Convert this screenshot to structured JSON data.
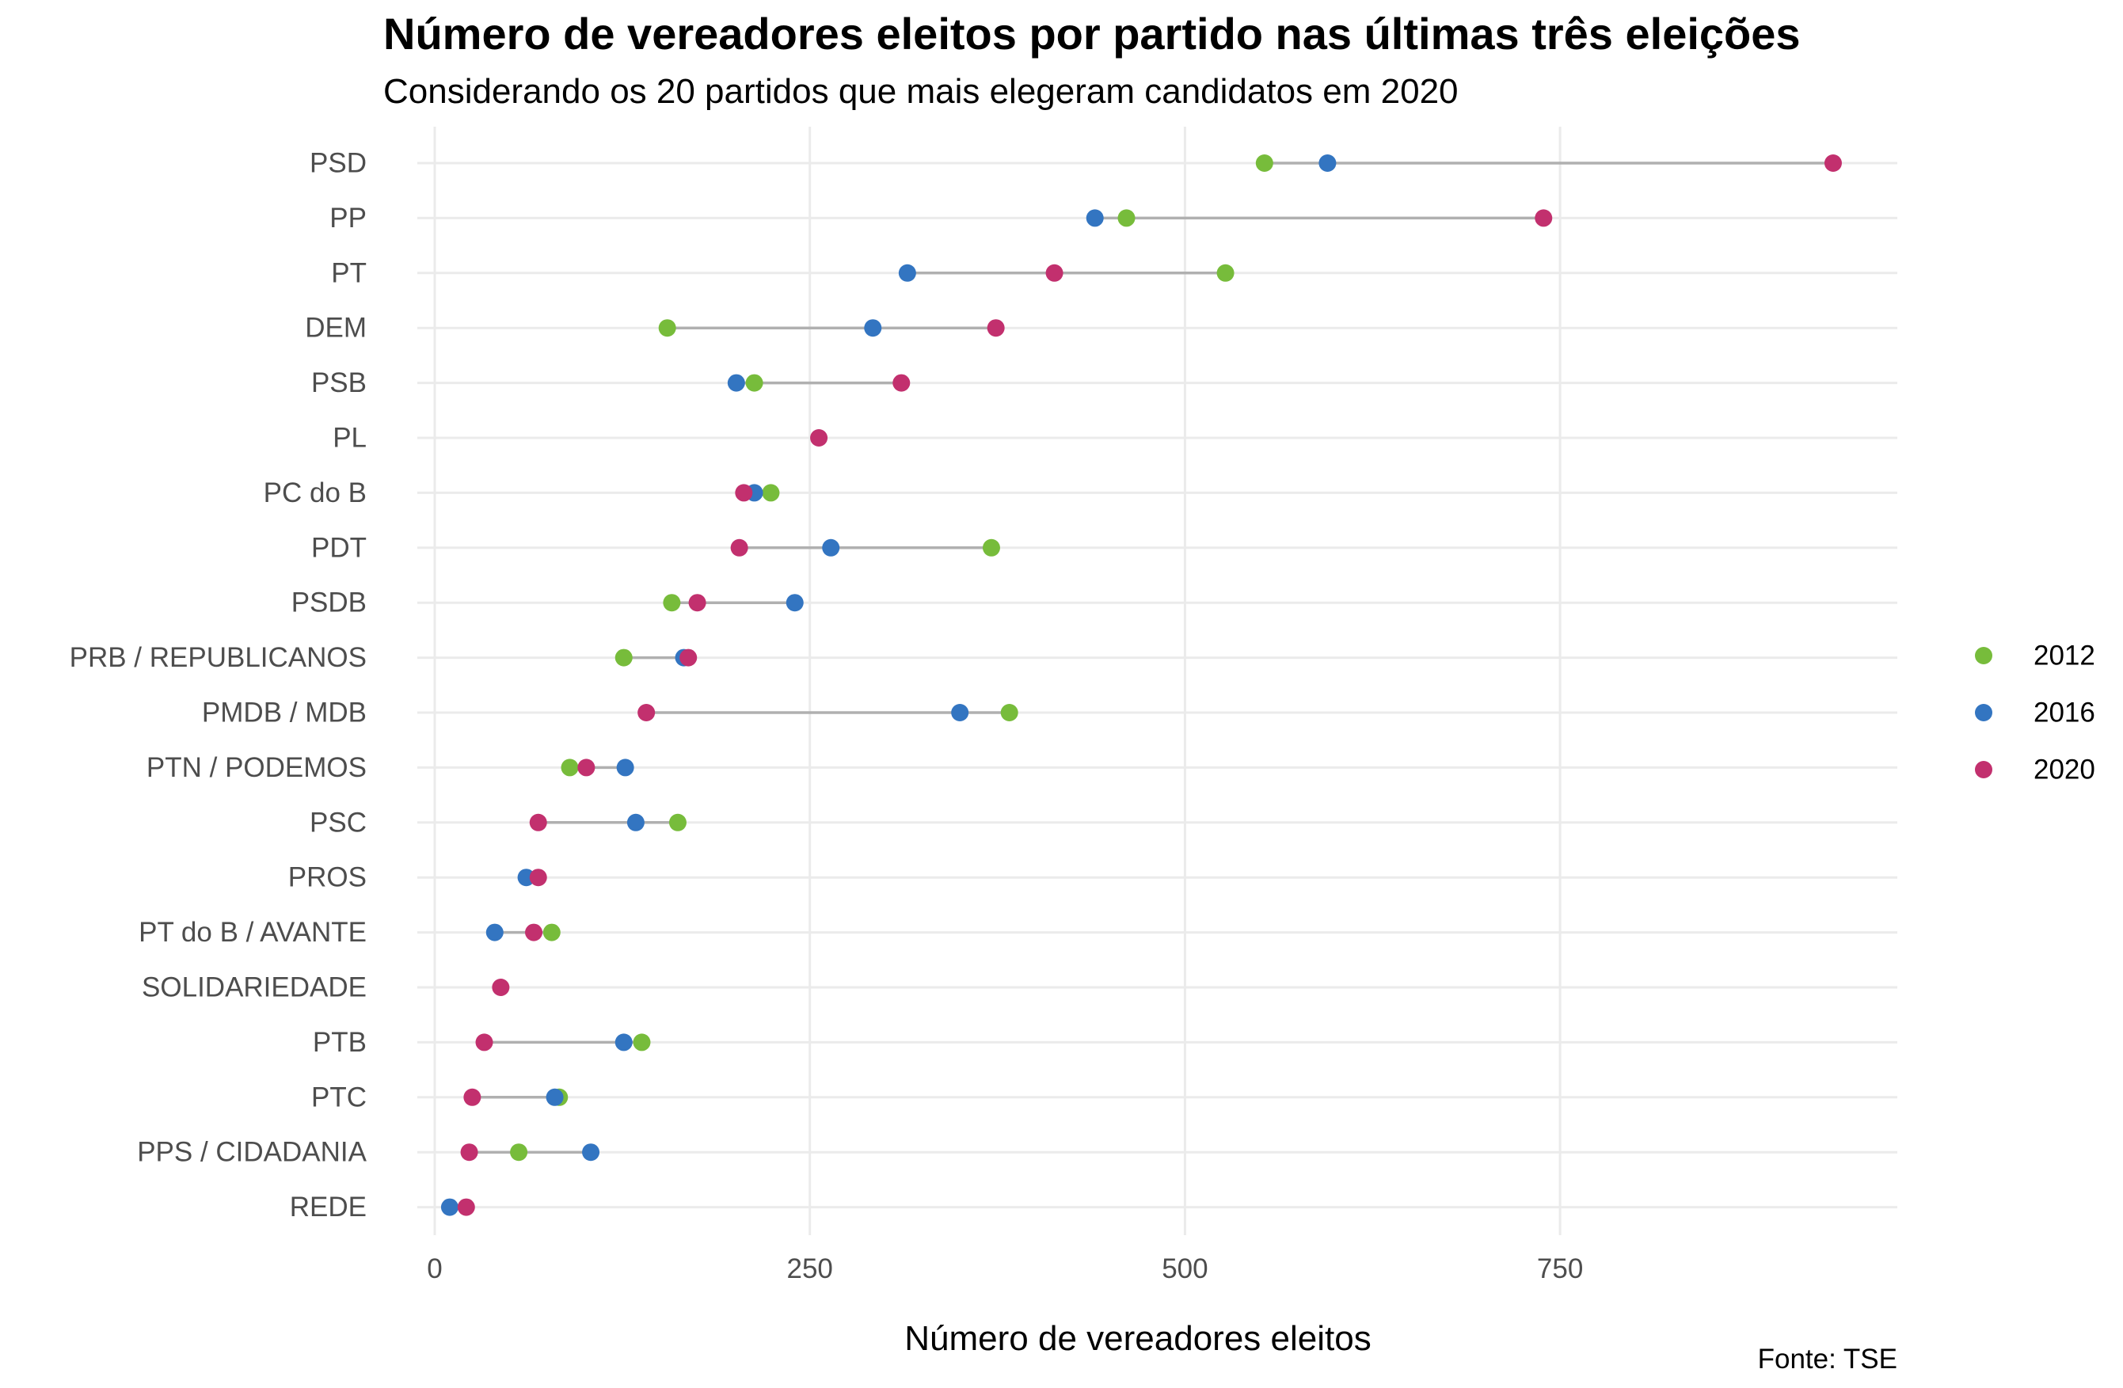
{
  "chart_data": {
    "type": "scatter",
    "subtype": "dumbbell",
    "title": "Número de vereadores eleitos por partido nas últimas três eleições",
    "subtitle": "Considerando os 20 partidos que mais elegeram candidatos em 2020",
    "xlabel": "Número de vereadores eleitos",
    "ylabel": "",
    "caption": "Fonte: TSE",
    "xlim": [
      0,
      975
    ],
    "xticks": [
      0,
      250,
      500,
      750
    ],
    "grid": true,
    "legend_position": "right",
    "categories": [
      "PSD",
      "PP",
      "PT",
      "DEM",
      "PSB",
      "PL",
      "PC do B",
      "PDT",
      "PSDB",
      "PRB / REPUBLICANOS",
      "PMDB / MDB",
      "PTN / PODEMOS",
      "PSC",
      "PROS",
      "PT do B / AVANTE",
      "SOLIDARIEDADE",
      "PTB",
      "PTC",
      "PPS / CIDADANIA",
      "REDE"
    ],
    "series": [
      {
        "name": "2012",
        "color": "#77bc3b",
        "values": [
          553,
          461,
          527,
          155,
          213,
          null,
          224,
          371,
          158,
          126,
          383,
          90,
          162,
          null,
          78,
          null,
          138,
          83,
          56,
          null
        ]
      },
      {
        "name": "2016",
        "color": "#3375c1",
        "values": [
          595,
          440,
          315,
          292,
          201,
          null,
          213,
          264,
          240,
          166,
          350,
          127,
          134,
          61,
          40,
          null,
          126,
          80,
          104,
          10
        ]
      },
      {
        "name": "2020",
        "color": "#c2306e",
        "values": [
          932,
          739,
          413,
          374,
          311,
          256,
          206,
          203,
          175,
          169,
          141,
          101,
          69,
          69,
          66,
          44,
          33,
          25,
          23,
          21
        ]
      }
    ]
  }
}
